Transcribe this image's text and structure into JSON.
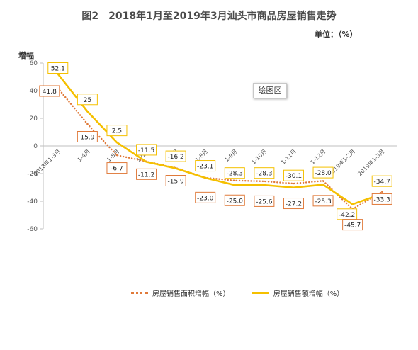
{
  "chart_data": {
    "type": "line",
    "title": "图2　2018年1月至2019年3月汕头市商品房屋销售走势",
    "unit_label": "单位：（%）",
    "ylabel": "增幅",
    "plot_area_label": "绘图区",
    "ylim": [
      -60,
      60
    ],
    "yticks": [
      "60",
      "40",
      "20",
      "0",
      "-20",
      "-40",
      "-60"
    ],
    "ytick_values": [
      60,
      40,
      20,
      0,
      -20,
      -40,
      -60
    ],
    "categories": [
      "2018年1-3月",
      "1-4月",
      "1-5月",
      "1-6月",
      "1-7月",
      "1-8月",
      "1-9月",
      "1-10月",
      "1-11月",
      "1-12月",
      "2019年1-2月",
      "2019年1-3月"
    ],
    "series": [
      {
        "name": "房屋销售面积增幅（%）",
        "values": [
          41.8,
          15.9,
          -6.7,
          -11.2,
          -15.9,
          -23.0,
          -25.0,
          -25.6,
          -27.2,
          -25.3,
          -45.7,
          -33.3
        ],
        "labels": [
          "41.8",
          "15.9",
          "-6.7",
          "-11.2",
          "-15.9",
          "-23.0",
          "-25.0",
          "-25.6",
          "-27.2",
          "-25.3",
          "-45.7",
          "-33.3"
        ],
        "color": "#E07A3A",
        "style": "dotted"
      },
      {
        "name": "房屋销售额增幅（%）",
        "values": [
          52.1,
          25,
          2.5,
          -11.5,
          -16.2,
          -23.1,
          -28.3,
          -28.3,
          -30.1,
          -28.0,
          -42.2,
          -34.7
        ],
        "labels": [
          "52.1",
          "25",
          "2.5",
          "-11.5",
          "-16.2",
          "-23.1",
          "-28.3",
          "-28.3",
          "-30.1",
          "-28.0",
          "-42.2",
          "-34.7"
        ],
        "color": "#F5C000",
        "style": "solid"
      }
    ],
    "legend_position": "bottom"
  }
}
